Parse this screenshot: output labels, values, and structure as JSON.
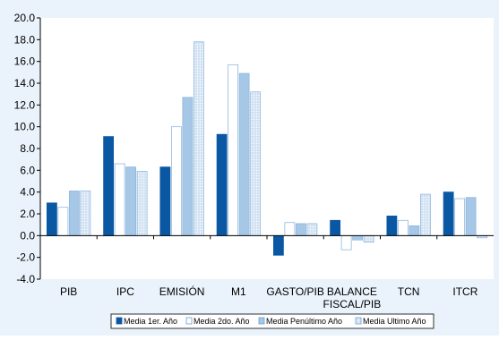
{
  "chart_data": {
    "type": "bar",
    "categories": [
      "PIB",
      "IPC",
      "EMISIÓN",
      "M1",
      "GASTO/PIB",
      "BALANCE FISCAL/PIB",
      "TCN",
      "ITCR"
    ],
    "category_lines": [
      [
        "PIB"
      ],
      [
        "IPC"
      ],
      [
        "EMISIÓN"
      ],
      [
        "M1"
      ],
      [
        "GASTO/PIB"
      ],
      [
        "BALANCE",
        "FISCAL/PIB"
      ],
      [
        "TCN"
      ],
      [
        "ITCR"
      ]
    ],
    "series": [
      {
        "name": "Media 1er. Año",
        "values": [
          3.0,
          9.1,
          6.3,
          9.3,
          -1.8,
          1.4,
          1.8,
          4.0
        ]
      },
      {
        "name": "Media 2do. Año",
        "values": [
          2.6,
          6.6,
          10.0,
          15.7,
          1.2,
          -1.3,
          1.4,
          3.4
        ]
      },
      {
        "name": "Media Penúltimo Año",
        "values": [
          4.1,
          6.3,
          12.7,
          14.9,
          1.1,
          -0.4,
          0.9,
          3.5
        ]
      },
      {
        "name": "Media Ultimo Año",
        "values": [
          4.1,
          5.9,
          17.8,
          13.2,
          1.1,
          -0.6,
          3.8,
          -0.2
        ]
      }
    ],
    "colors": [
      "#0a57a4",
      "#ffffff",
      "#a7c7e7",
      "#d3e3f3"
    ],
    "background": "#eaf3fb",
    "ylim": [
      -4.0,
      20.0
    ],
    "yticks": [
      "-4.0",
      "-2.0",
      "0.0",
      "2.0",
      "4.0",
      "6.0",
      "8.0",
      "10.0",
      "12.0",
      "14.0",
      "16.0",
      "18.0",
      "20.0"
    ],
    "grid": false,
    "legend_position": "bottom"
  }
}
